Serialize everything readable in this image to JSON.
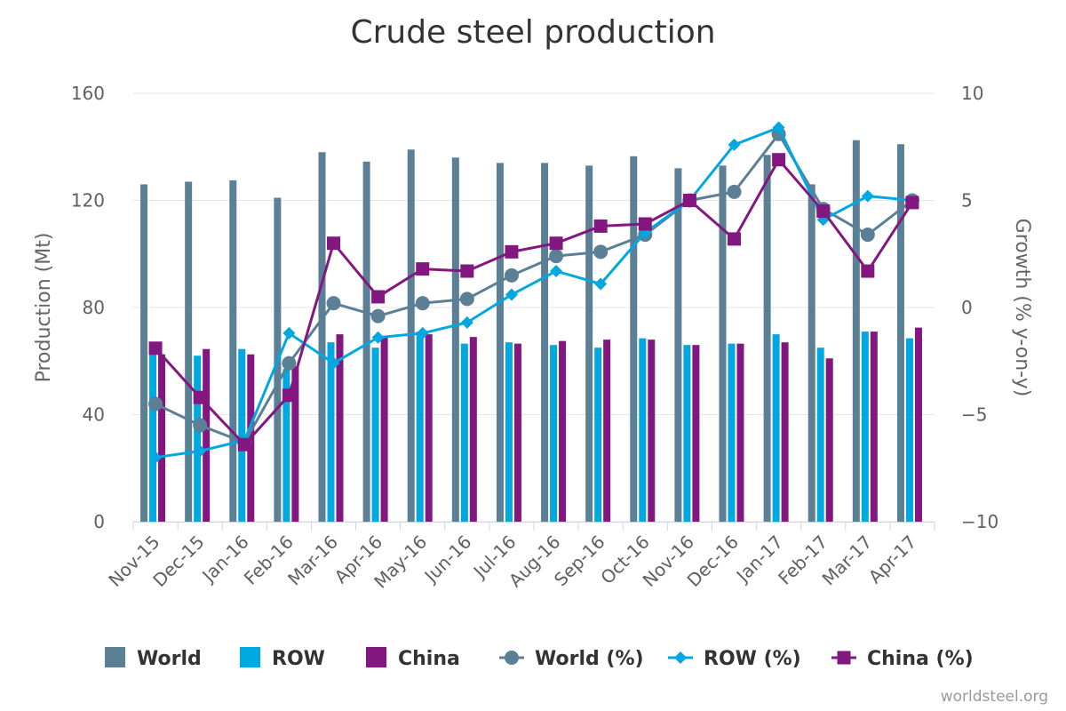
{
  "chart_data": {
    "type": "bar",
    "title": "Crude steel production",
    "credit": "worldsteel.org",
    "categories": [
      "Nov-15",
      "Dec-15",
      "Jan-16",
      "Feb-16",
      "Mar-16",
      "Apr-16",
      "May-16",
      "Jun-16",
      "Jul-16",
      "Aug-16",
      "Sep-16",
      "Oct-16",
      "Nov-16",
      "Dec-16",
      "Jan-17",
      "Feb-17",
      "Mar-17",
      "Apr-17"
    ],
    "y_left": {
      "label": "Production (Mt)",
      "min": 0,
      "max": 160,
      "ticks": [
        0,
        40,
        80,
        120,
        160
      ],
      "tick_labels": [
        "0",
        "40",
        "80",
        "120",
        "160"
      ]
    },
    "y_right": {
      "label": "Growth (% y-on-y)",
      "min": -10,
      "max": 10,
      "ticks": [
        -10,
        -5,
        0,
        5,
        10
      ],
      "tick_labels": [
        "−10",
        "−5",
        "0",
        "5",
        "10"
      ]
    },
    "grid": true,
    "legend_position": "bottom",
    "bar_series": [
      {
        "name": "World",
        "color": "#5b7f95",
        "values": [
          126,
          127,
          127.5,
          121,
          138,
          134.5,
          139,
          136,
          134,
          134,
          133,
          136.5,
          132,
          133,
          137,
          126,
          142.5,
          141
        ]
      },
      {
        "name": "ROW",
        "color": "#00a8e1",
        "values": [
          63,
          62,
          64.5,
          57,
          67,
          65,
          71,
          66.5,
          67,
          66,
          65,
          68.5,
          66,
          66.5,
          70,
          65,
          71,
          68.5
        ]
      },
      {
        "name": "China",
        "color": "#82187f",
        "values": [
          62.5,
          64.5,
          62.5,
          58,
          70,
          69,
          70,
          69,
          66.5,
          67.5,
          68,
          68,
          66,
          66.5,
          67,
          61,
          71,
          72.5
        ]
      }
    ],
    "line_series": [
      {
        "name": "World (%)",
        "color": "#5b7f95",
        "marker": "circle",
        "values": [
          -4.5,
          -5.5,
          -6.3,
          -2.6,
          0.2,
          -0.4,
          0.2,
          0.4,
          1.5,
          2.4,
          2.6,
          3.4,
          5.0,
          5.4,
          8.1,
          4.6,
          3.4,
          5.0
        ]
      },
      {
        "name": "ROW (%)",
        "color": "#00a8e1",
        "marker": "diamond",
        "values": [
          -7.0,
          -6.7,
          -6.2,
          -1.2,
          -2.6,
          -1.4,
          -1.2,
          -0.7,
          0.6,
          1.7,
          1.1,
          3.5,
          5.0,
          7.6,
          8.4,
          4.1,
          5.2,
          5.0
        ]
      },
      {
        "name": "China (%)",
        "color": "#82187f",
        "marker": "square",
        "values": [
          -1.9,
          -4.2,
          -6.4,
          -4.1,
          3.0,
          0.5,
          1.8,
          1.7,
          2.6,
          3.0,
          3.8,
          3.9,
          5.0,
          3.2,
          6.9,
          4.5,
          1.7,
          4.9
        ]
      }
    ]
  }
}
